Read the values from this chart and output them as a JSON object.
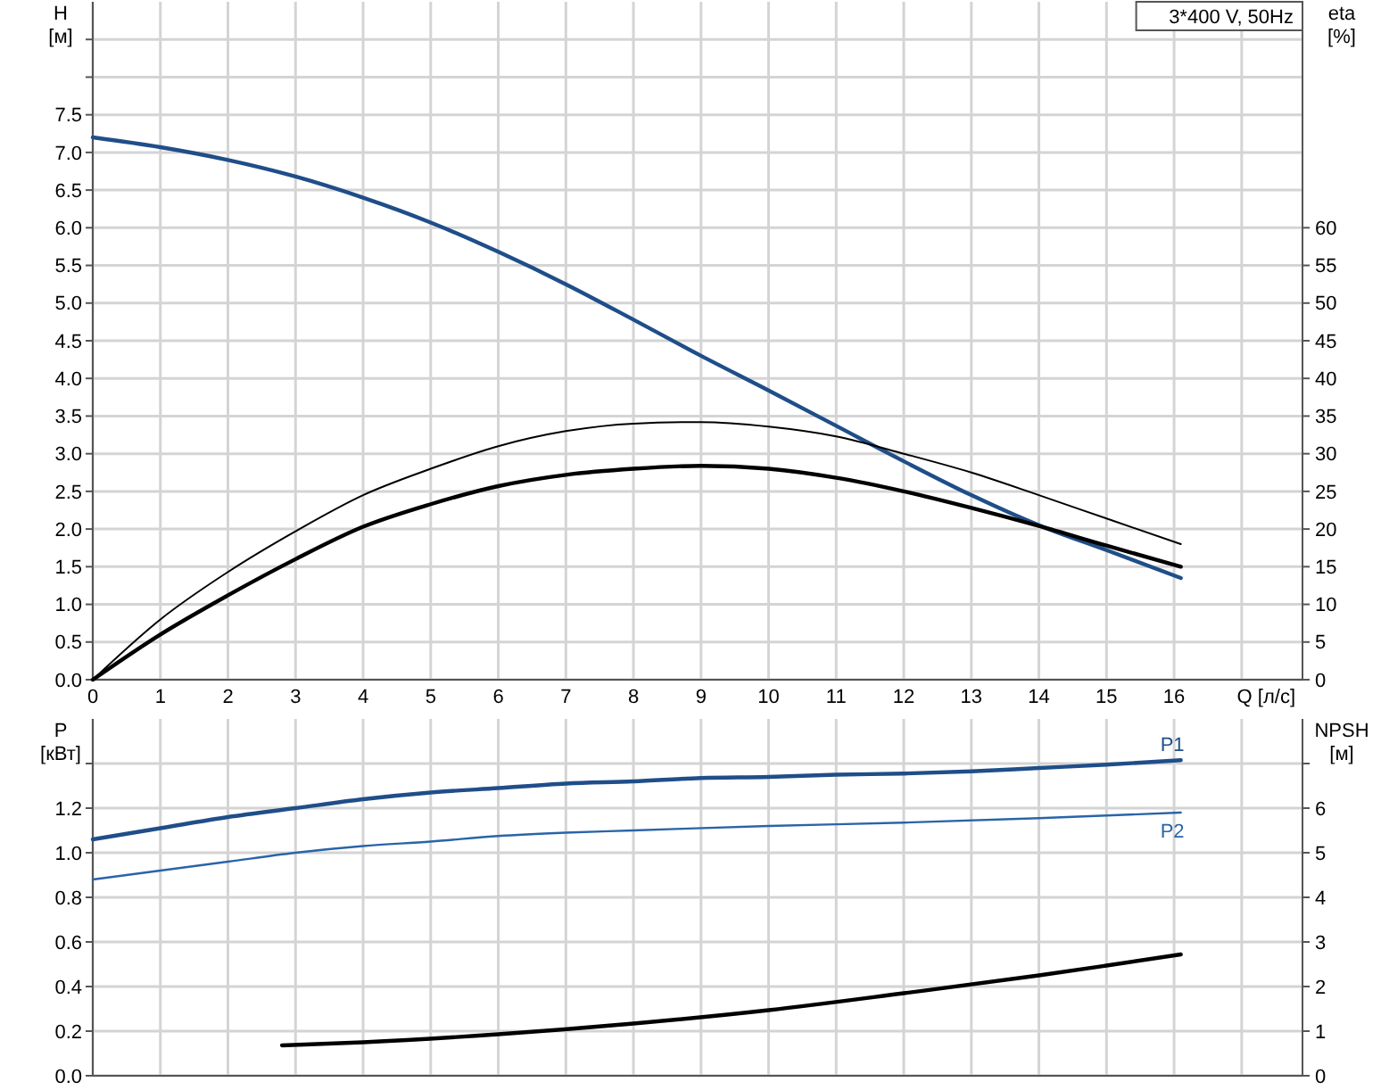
{
  "chart_data": [
    {
      "type": "line",
      "title": "3*400 V, 50Hz",
      "xlabel": "Q [л/с]",
      "ylabel": "H [м]",
      "y2label": "eta [%]",
      "grid": true,
      "xlim": [
        0,
        17.9
      ],
      "xticks": [
        0,
        1,
        2,
        3,
        4,
        5,
        6,
        7,
        8,
        9,
        10,
        11,
        12,
        13,
        14,
        15,
        16,
        {
          "value": 17,
          "label": null
        }
      ],
      "ylim": [
        0,
        9
      ],
      "yticks": [
        {
          "value": 0,
          "label": "0.0"
        },
        0.5,
        {
          "value": 1,
          "label": "1.0"
        },
        1.5,
        {
          "value": 2,
          "label": "2.0"
        },
        2.5,
        {
          "value": 3,
          "label": "3.0"
        },
        3.5,
        {
          "value": 4,
          "label": "4.0"
        },
        4.5,
        {
          "value": 5,
          "label": "5.0"
        },
        5.5,
        {
          "value": 6,
          "label": "6.0"
        },
        6.5,
        {
          "value": 7,
          "label": "7.0"
        },
        7.5,
        {
          "value": 8,
          "label": null
        },
        {
          "value": 8.5,
          "label": null
        }
      ],
      "y2lim": [
        0,
        90
      ],
      "y2ticks": [
        0,
        5,
        10,
        15,
        20,
        25,
        30,
        35,
        40,
        45,
        50,
        55,
        60
      ],
      "series": [
        {
          "color": "#1f4e89",
          "x": [
            0,
            1,
            2,
            3,
            4,
            5,
            6,
            7,
            8,
            9,
            10,
            11,
            12,
            13,
            14,
            15,
            16.1
          ],
          "values": [
            7.2,
            7.07,
            6.9,
            6.68,
            6.4,
            6.07,
            5.68,
            5.25,
            4.78,
            4.3,
            3.84,
            3.37,
            2.9,
            2.45,
            2.05,
            1.72,
            1.35
          ]
        },
        {
          "color": "#000000",
          "axis": "y2",
          "x": [
            0,
            1,
            2,
            3,
            4,
            5,
            6,
            7,
            8,
            9,
            10,
            11,
            12,
            13,
            14,
            15,
            16.1
          ],
          "values": [
            0,
            8,
            14.3,
            19.7,
            24.5,
            28,
            31,
            33,
            34,
            34.2,
            33.6,
            32.3,
            30,
            27.5,
            24.5,
            21.4,
            18
          ]
        },
        {
          "color": "#000000",
          "axis": "y2",
          "x": [
            0,
            1,
            2,
            3,
            4,
            5,
            6,
            7,
            8,
            9,
            10,
            11,
            12,
            13,
            14,
            15,
            16.1
          ],
          "values": [
            0,
            6,
            11.2,
            16,
            20.3,
            23.3,
            25.7,
            27.2,
            28,
            28.4,
            28,
            26.8,
            25,
            22.8,
            20.4,
            17.8,
            15
          ]
        }
      ]
    },
    {
      "type": "line",
      "ylabel": "P [кВт]",
      "y2label": "NPSH [м]",
      "grid": true,
      "tick_labels": "y",
      "xlim": [
        0,
        17.9
      ],
      "xticks": [
        0,
        1,
        2,
        3,
        4,
        5,
        6,
        7,
        8,
        9,
        10,
        11,
        12,
        13,
        14,
        15,
        16,
        {
          "value": 17,
          "label": null
        }
      ],
      "ylim": [
        0,
        1.6
      ],
      "yticks": [
        {
          "value": 0,
          "label": "0.0"
        },
        0.2,
        0.4,
        0.6,
        0.8,
        {
          "value": 1,
          "label": "1.0"
        },
        1.2,
        {
          "value": 1.4,
          "label": null
        }
      ],
      "y2lim": [
        0,
        8
      ],
      "y2ticks": [
        0,
        1,
        2,
        3,
        4,
        5,
        6,
        {
          "value": 7,
          "label": null
        }
      ],
      "series": [
        {
          "name": "P1",
          "color": "#1f4e89",
          "x": [
            0,
            1,
            2,
            3,
            4,
            5,
            6,
            7,
            8,
            9,
            10,
            11,
            12,
            13,
            14,
            15,
            16.1
          ],
          "values": [
            1.06,
            1.11,
            1.16,
            1.2,
            1.24,
            1.27,
            1.29,
            1.31,
            1.32,
            1.335,
            1.34,
            1.35,
            1.355,
            1.365,
            1.38,
            1.395,
            1.415
          ]
        },
        {
          "name": "P2",
          "color": "#2a64a8",
          "x": [
            0,
            1,
            2,
            3,
            4,
            5,
            6,
            7,
            8,
            10,
            12,
            14,
            16.1
          ],
          "values": [
            0.88,
            0.92,
            0.96,
            1.0,
            1.03,
            1.05,
            1.075,
            1.09,
            1.1,
            1.12,
            1.135,
            1.155,
            1.18
          ]
        },
        {
          "color": "#000000",
          "axis": "y2",
          "x": [
            2.8,
            4,
            6,
            8,
            10,
            12,
            14,
            15,
            16.1
          ],
          "values": [
            0.68,
            0.75,
            0.93,
            1.17,
            1.47,
            1.85,
            2.25,
            2.47,
            2.72
          ]
        }
      ]
    }
  ]
}
